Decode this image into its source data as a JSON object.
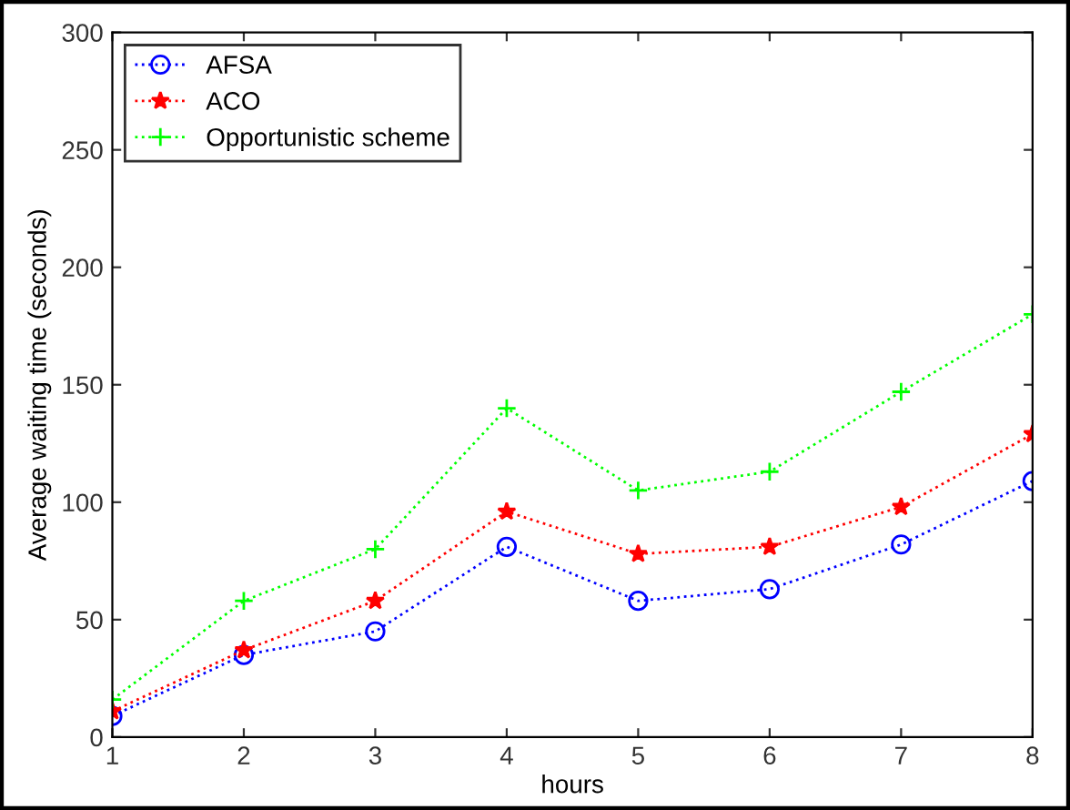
{
  "chart_data": {
    "type": "line",
    "xlabel": "hours",
    "ylabel": "Average waiting time (seconds)",
    "x": [
      1,
      2,
      3,
      4,
      5,
      6,
      7,
      8
    ],
    "series": [
      {
        "name": "AFSA",
        "color": "#0000ff",
        "marker": "circle",
        "values": [
          9,
          35,
          45,
          81,
          58,
          63,
          82,
          109
        ]
      },
      {
        "name": "ACO",
        "color": "#ff0000",
        "marker": "star",
        "values": [
          11,
          37,
          58,
          96,
          78,
          81,
          98,
          129
        ]
      },
      {
        "name": "Opportunistic scheme",
        "color": "#00ff00",
        "marker": "cross",
        "values": [
          16,
          58,
          80,
          140,
          105,
          113,
          147,
          180
        ]
      }
    ],
    "xlim": [
      1,
      8
    ],
    "xticks": [
      1,
      2,
      3,
      4,
      5,
      6,
      7,
      8
    ],
    "ylim": [
      0,
      300
    ],
    "yticks": [
      0,
      50,
      100,
      150,
      200,
      250,
      300
    ],
    "grid": false,
    "legend": "top left",
    "line_style": "dotted"
  }
}
